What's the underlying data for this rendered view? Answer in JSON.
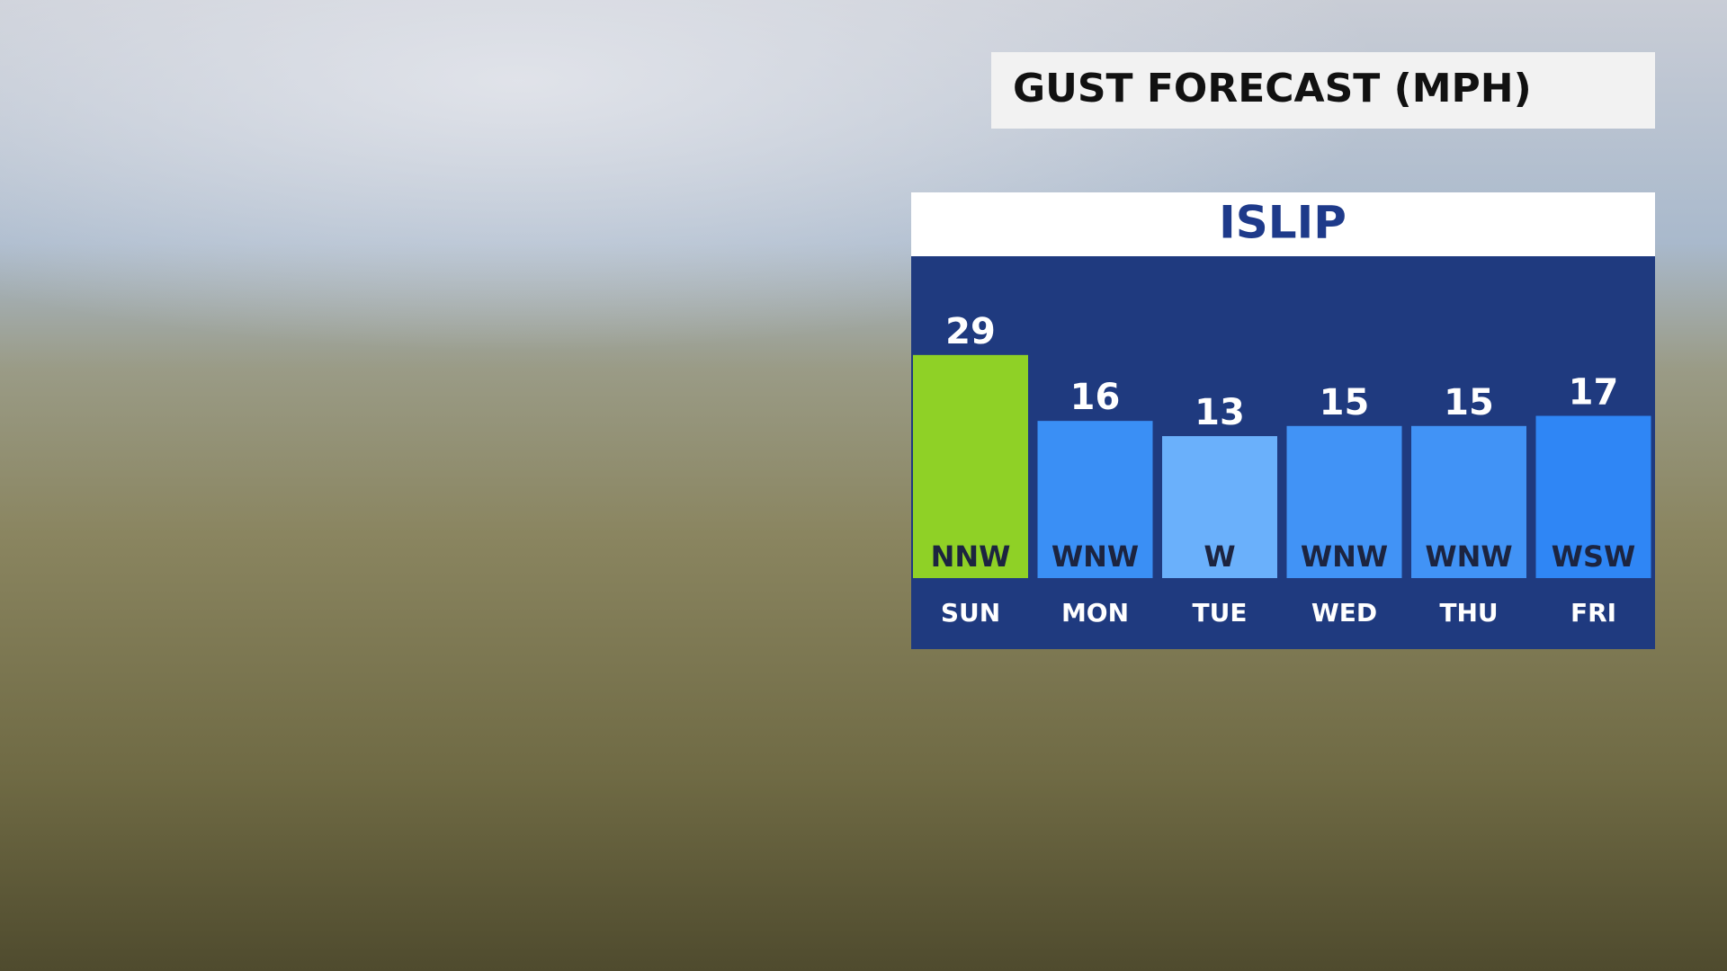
{
  "chart_data": {
    "type": "bar",
    "title": "GUST FORECAST (MPH)",
    "subtitle": "ISLIP",
    "categories": [
      "SUN",
      "MON",
      "TUE",
      "WED",
      "THU",
      "FRI"
    ],
    "values": [
      29,
      16,
      13,
      15,
      15,
      17
    ],
    "directions": [
      "NNW",
      "WNW",
      "W",
      "WNW",
      "WNW",
      "WSW"
    ],
    "colors": [
      "#8fd126",
      "#3a8ff5",
      "#6ab0fb",
      "#4193f6",
      "#4193f6",
      "#2f86f5"
    ],
    "ylim": [
      -15,
      35
    ]
  }
}
